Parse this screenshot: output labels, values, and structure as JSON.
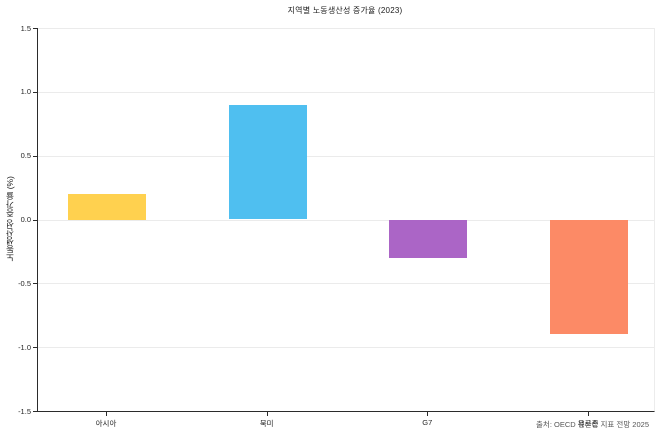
{
  "chart_data": {
    "type": "bar",
    "title": "지역별 노동생산성 증가율 (2023)",
    "ylabel": "노동생산성 증가율 (%)",
    "xlabel": "",
    "categories": [
      "아시아",
      "북미",
      "G7",
      "유로존"
    ],
    "values": [
      0.2,
      0.9,
      -0.3,
      -0.9
    ],
    "bar_colors": [
      "#ffd14f",
      "#4fbff0",
      "#ab65c6",
      "#fc8a66"
    ],
    "ylim": [
      -1.5,
      1.5
    ],
    "yticks": [
      "1.5",
      "1.0",
      "0.5",
      "0.0",
      "-0.5",
      "-1.0",
      "-1.5"
    ],
    "grid": true,
    "legend_position": "none",
    "source_note": "출처: OECD 생산성 지표 전망 2025"
  },
  "colors": {
    "background": "#ffffff",
    "axis": "#2b2b2b",
    "gridline": "#ebebeb",
    "tick_label": "#262626",
    "title_text": "#1a1a1a",
    "source_text": "#555555"
  }
}
